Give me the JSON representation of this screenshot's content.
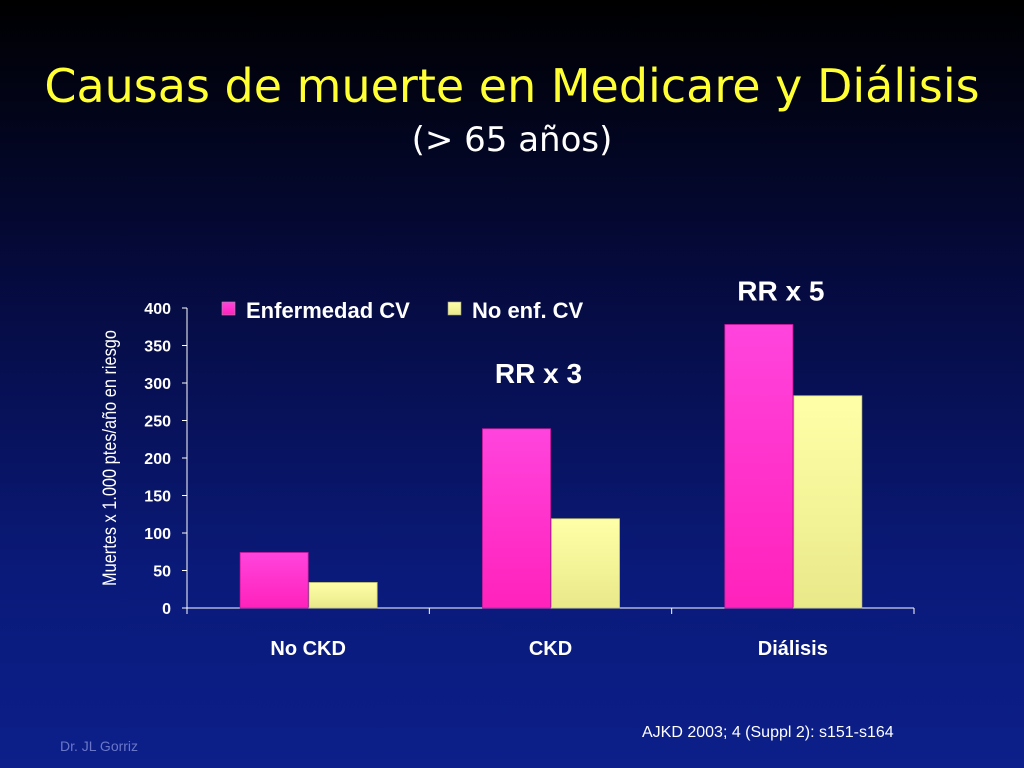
{
  "slide": {
    "title": "Causas de muerte en Medicare y Diálisis",
    "subtitle": "(> 65 años)",
    "author": "Dr. JL Gorriz",
    "reference": "AJKD 2003; 4 (Suppl 2): s151-s164"
  },
  "colors": {
    "series1": "#ff33cc",
    "series2": "#ffff99",
    "text": "#ffffff",
    "title": "#ffff33"
  },
  "chart_data": {
    "type": "bar",
    "title": "",
    "categories": [
      "No CKD",
      "CKD",
      "Diálisis"
    ],
    "series": [
      {
        "name": "Enfermedad CV",
        "values": [
          74,
          239,
          378
        ]
      },
      {
        "name": "No enf. CV",
        "values": [
          34,
          119,
          283
        ]
      }
    ],
    "xlabel": "",
    "ylabel": "Muertes x 1.000 ptes/año en riesgo",
    "ylim": [
      0,
      400
    ],
    "yticks": [
      0,
      50,
      100,
      150,
      200,
      250,
      300,
      350,
      400
    ],
    "grid": false,
    "legend": "top-left",
    "annotations": [
      {
        "text": "RR x 3",
        "category": "CKD"
      },
      {
        "text": "RR x 5",
        "category": "Diálisis"
      }
    ]
  }
}
